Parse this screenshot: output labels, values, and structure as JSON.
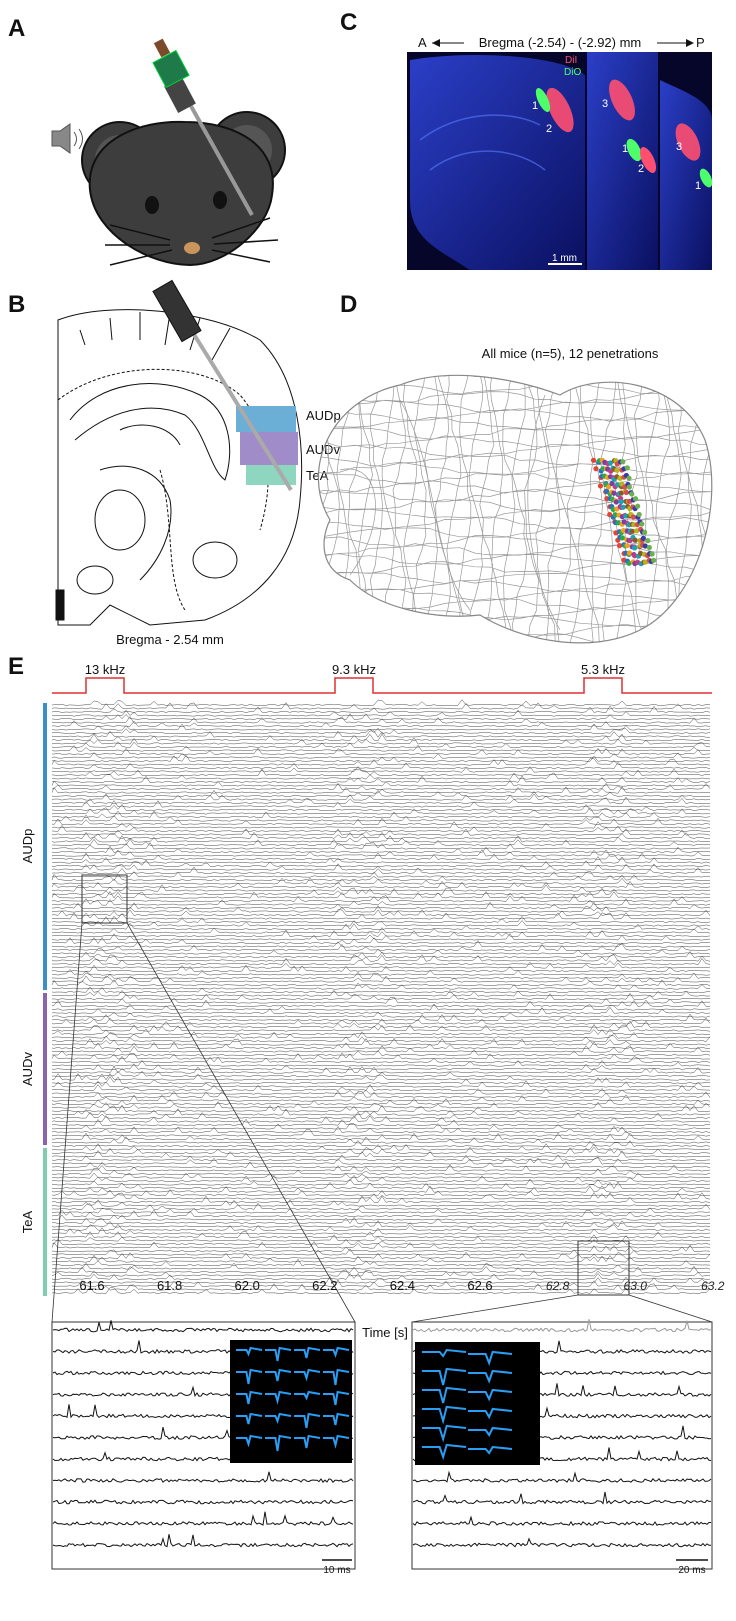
{
  "panels": {
    "a": {
      "label": "A"
    },
    "b": {
      "label": "B",
      "regions": [
        "AUDp",
        "AUDv",
        "TeA"
      ],
      "caption": "Bregma - 2.54 mm"
    },
    "c": {
      "label": "C",
      "axis_left": "A",
      "axis_title": "Bregma (-2.54) - (-2.92) mm",
      "axis_right": "P",
      "dyes": [
        "DiI",
        "DiO"
      ],
      "track_labels": [
        "1",
        "2",
        "3",
        "1",
        "2",
        "3",
        "1"
      ],
      "scale_bar": "1 mm"
    },
    "d": {
      "label": "D",
      "title": "All mice (n=5), 12 penetrations"
    },
    "e": {
      "label": "E",
      "stimuli": [
        "13 kHz",
        "9.3 kHz",
        "5.3 kHz"
      ],
      "regions": [
        "AUDp",
        "AUDv",
        "TeA"
      ],
      "time_ticks": [
        "61.6",
        "61.8",
        "62.0",
        "62.2",
        "62.4",
        "62.6",
        "62.8",
        "63.0",
        "63.2"
      ],
      "axis_label": "Time [s]",
      "scale_bars": [
        "10 ms",
        "20 ms"
      ]
    }
  }
}
